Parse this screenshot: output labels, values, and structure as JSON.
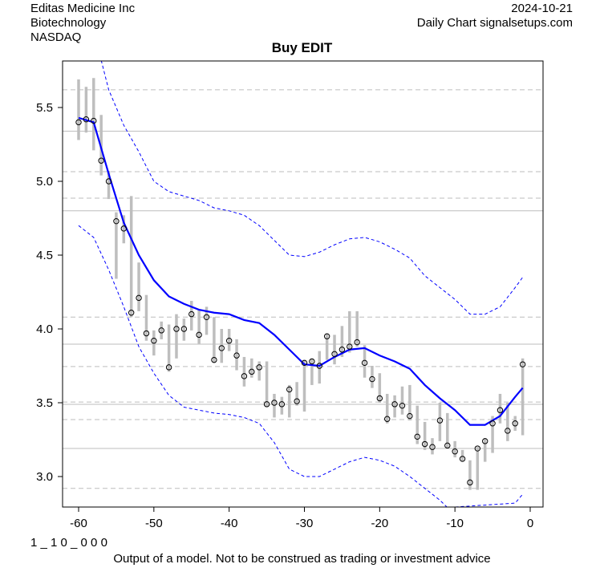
{
  "header": {
    "company": "Editas Medicine Inc",
    "sector": "Biotechnology",
    "exchange": "NASDAQ",
    "date": "2024-10-21",
    "source": "Daily Chart signalsetups.com"
  },
  "footer": {
    "code": "1 _ 1 0 _ 0 0 0",
    "disclaimer": "Output of a model. Not to be construed as trading or investment advice"
  },
  "chart_data": {
    "type": "line",
    "title": "Buy EDIT",
    "xlabel": "",
    "ylabel": "",
    "xlim": [
      -62.2,
      1.7
    ],
    "ylim": [
      2.793,
      5.815
    ],
    "xticks": [
      -60,
      -50,
      -40,
      -30,
      -20,
      -10,
      0
    ],
    "yticks": [
      3.0,
      3.5,
      4.0,
      4.5,
      5.0,
      5.5
    ],
    "hlines_solid": [
      5.34,
      4.8,
      3.897,
      3.489,
      3.19
    ],
    "hlines_dashed": [
      5.62,
      5.065,
      4.886,
      4.08,
      3.745,
      3.505,
      3.386,
      3.19,
      2.92
    ],
    "colors": {
      "bars": "#bebebe",
      "ma": "#0000ff",
      "bands": "#0000ff",
      "grid": "#bebebe"
    },
    "x": [
      -60,
      -59,
      -58,
      -57,
      -56,
      -55,
      -54,
      -53,
      -52,
      -51,
      -50,
      -49,
      -48,
      -47,
      -46,
      -45,
      -44,
      -43,
      -42,
      -41,
      -40,
      -39,
      -38,
      -37,
      -36,
      -35,
      -34,
      -33,
      -32,
      -31,
      -30,
      -29,
      -28,
      -27,
      -26,
      -25,
      -24,
      -23,
      -22,
      -21,
      -20,
      -19,
      -18,
      -17,
      -16,
      -15,
      -14,
      -13,
      -12,
      -11,
      -10,
      -9,
      -8,
      -7,
      -6,
      -5,
      -4,
      -3,
      -2,
      -1
    ],
    "close": [
      5.4,
      5.42,
      5.41,
      5.14,
      5.0,
      4.73,
      4.68,
      4.11,
      4.21,
      3.97,
      3.92,
      3.99,
      3.74,
      4.0,
      4.0,
      4.1,
      3.96,
      4.08,
      3.79,
      3.87,
      3.92,
      3.82,
      3.68,
      3.71,
      3.74,
      3.49,
      3.5,
      3.49,
      3.59,
      3.51,
      3.77,
      3.78,
      3.75,
      3.95,
      3.83,
      3.86,
      3.88,
      3.91,
      3.77,
      3.66,
      3.53,
      3.39,
      3.49,
      3.48,
      3.41,
      3.27,
      3.22,
      3.2,
      3.38,
      3.21,
      3.17,
      3.12,
      2.96,
      3.19,
      3.24,
      3.36,
      3.45,
      3.31,
      3.36,
      3.76
    ],
    "high": [
      5.69,
      5.64,
      5.7,
      5.45,
      5.07,
      4.79,
      4.77,
      4.9,
      4.45,
      4.23,
      3.99,
      4.05,
      4.03,
      4.1,
      4.07,
      4.19,
      4.13,
      4.15,
      4.08,
      4.0,
      4.0,
      3.93,
      3.81,
      3.8,
      3.78,
      3.78,
      3.56,
      3.54,
      3.62,
      3.64,
      3.79,
      3.8,
      3.85,
      3.97,
      3.96,
      4.02,
      4.12,
      4.12,
      3.89,
      3.75,
      3.7,
      3.56,
      3.55,
      3.61,
      3.62,
      3.48,
      3.37,
      3.26,
      3.5,
      3.43,
      3.24,
      3.18,
      3.11,
      3.2,
      3.26,
      3.41,
      3.56,
      3.5,
      3.41,
      3.8
    ],
    "low": [
      5.28,
      5.33,
      5.21,
      5.04,
      4.88,
      4.34,
      4.58,
      4.08,
      4.12,
      3.92,
      3.82,
      3.93,
      3.71,
      3.8,
      3.92,
      3.99,
      3.9,
      3.96,
      3.77,
      3.77,
      3.85,
      3.72,
      3.61,
      3.67,
      3.65,
      3.47,
      3.4,
      3.42,
      3.4,
      3.48,
      3.44,
      3.62,
      3.63,
      3.79,
      3.76,
      3.81,
      3.84,
      3.88,
      3.67,
      3.6,
      3.5,
      3.36,
      3.4,
      3.42,
      3.38,
      3.22,
      3.18,
      3.15,
      3.24,
      3.19,
      3.13,
      3.1,
      2.91,
      2.91,
      3.1,
      3.16,
      3.36,
      3.24,
      3.31,
      3.28
    ],
    "series": [
      {
        "name": "moving-average",
        "x": [
          -60,
          -58,
          -56,
          -54,
          -52,
          -50,
          -48,
          -46,
          -44,
          -42,
          -40,
          -38,
          -36,
          -34,
          -32,
          -30,
          -28,
          -26,
          -24,
          -22,
          -20,
          -18,
          -16,
          -14,
          -12,
          -10,
          -8,
          -6,
          -4,
          -2,
          -1
        ],
        "values": [
          5.43,
          5.4,
          5.05,
          4.72,
          4.5,
          4.33,
          4.22,
          4.17,
          4.13,
          4.11,
          4.1,
          4.06,
          4.04,
          3.96,
          3.86,
          3.76,
          3.75,
          3.81,
          3.86,
          3.87,
          3.82,
          3.78,
          3.73,
          3.62,
          3.53,
          3.45,
          3.35,
          3.35,
          3.41,
          3.54,
          3.6
        ]
      },
      {
        "name": "upper-band",
        "x": [
          -57,
          -56,
          -54,
          -52,
          -50,
          -48,
          -46,
          -44,
          -42,
          -40,
          -38,
          -36,
          -34,
          -32,
          -30,
          -28,
          -26,
          -24,
          -22,
          -20,
          -18,
          -16,
          -14,
          -12,
          -10,
          -8,
          -6,
          -4,
          -2,
          -1
        ],
        "values": [
          5.82,
          5.62,
          5.38,
          5.2,
          5.0,
          4.93,
          4.9,
          4.87,
          4.82,
          4.8,
          4.77,
          4.7,
          4.6,
          4.5,
          4.49,
          4.52,
          4.57,
          4.61,
          4.62,
          4.59,
          4.54,
          4.48,
          4.36,
          4.28,
          4.2,
          4.1,
          4.1,
          4.15,
          4.28,
          4.35
        ]
      },
      {
        "name": "lower-band",
        "x": [
          -60,
          -58,
          -56,
          -54,
          -52,
          -50,
          -48,
          -46,
          -44,
          -42,
          -40,
          -38,
          -36,
          -34,
          -32,
          -30,
          -28,
          -26,
          -24,
          -22,
          -20,
          -18,
          -16,
          -14,
          -12,
          -11,
          -2,
          -1
        ],
        "values": [
          4.7,
          4.62,
          4.4,
          4.15,
          3.88,
          3.7,
          3.55,
          3.47,
          3.45,
          3.43,
          3.42,
          3.4,
          3.36,
          3.23,
          3.05,
          3.0,
          3.0,
          3.05,
          3.1,
          3.13,
          3.11,
          3.07,
          3.0,
          2.92,
          2.84,
          2.79,
          2.82,
          2.88
        ]
      }
    ]
  }
}
